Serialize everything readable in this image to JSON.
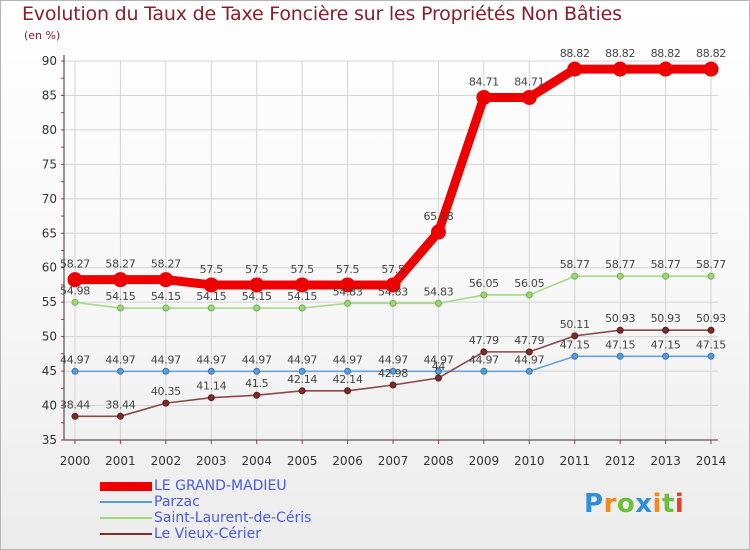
{
  "chart_data": {
    "type": "line",
    "title": "Evolution du Taux de Taxe Foncière sur les Propriétés Non Bâties",
    "ylabel": "(en %)",
    "xlabel": "",
    "ylim": [
      35,
      90
    ],
    "yticks": [
      "35",
      "40",
      "45",
      "50",
      "55",
      "60",
      "65",
      "70",
      "75",
      "80",
      "85",
      "90"
    ],
    "categories": [
      "2000",
      "2001",
      "2002",
      "2003",
      "2004",
      "2005",
      "2006",
      "2007",
      "2008",
      "2009",
      "2010",
      "2011",
      "2012",
      "2013",
      "2014"
    ],
    "grid": true,
    "legend_position": "bottom-left",
    "series": [
      {
        "name": "LE GRAND-MADIEU",
        "color": "#ee0000",
        "values": [
          58.27,
          58.27,
          58.27,
          57.5,
          57.5,
          57.5,
          57.5,
          57.5,
          65.18,
          84.71,
          84.71,
          88.82,
          88.82,
          88.82,
          88.82
        ],
        "labels": [
          "58.27",
          "58.27",
          "58.27",
          "57.5",
          "57.5",
          "57.5",
          "57.5",
          "57.5",
          "65.18",
          "84.71",
          "84.71",
          "88.82",
          "88.82",
          "88.82",
          "88.82"
        ]
      },
      {
        "name": "Parzac",
        "color": "#5b9bd5",
        "values": [
          44.97,
          44.97,
          44.97,
          44.97,
          44.97,
          44.97,
          44.97,
          44.97,
          44.97,
          44.97,
          44.97,
          47.15,
          47.15,
          47.15,
          47.15
        ],
        "labels": [
          "44.97",
          "44.97",
          "44.97",
          "44.97",
          "44.97",
          "44.97",
          "44.97",
          "44.97",
          "44.97",
          "44.97",
          "44.97",
          "47.15",
          "47.15",
          "47.15",
          "47.15"
        ]
      },
      {
        "name": "Saint-Laurent-de-Céris",
        "color": "#9fd67a",
        "values": [
          54.98,
          54.15,
          54.15,
          54.15,
          54.15,
          54.15,
          54.83,
          54.83,
          54.83,
          56.05,
          56.05,
          58.77,
          58.77,
          58.77,
          58.77
        ],
        "labels": [
          "54.98",
          "54.15",
          "54.15",
          "54.15",
          "54.15",
          "54.15",
          "54.83",
          "54.83",
          "54.83",
          "56.05",
          "56.05",
          "58.77",
          "58.77",
          "58.77",
          "58.77"
        ]
      },
      {
        "name": "Le Vieux-Cérier",
        "color": "#7b2c2c",
        "values": [
          38.44,
          38.44,
          40.35,
          41.14,
          41.5,
          42.14,
          42.14,
          42.98,
          44,
          47.79,
          47.79,
          50.11,
          50.93,
          50.93,
          50.93
        ],
        "labels": [
          "38.44",
          "38.44",
          "40.35",
          "41.14",
          "41.5",
          "42.14",
          "42.14",
          "42.98",
          "44",
          "47.79",
          "47.79",
          "50.11",
          "50.93",
          "50.93",
          "50.93"
        ]
      }
    ]
  },
  "brand": {
    "letters": [
      "P",
      "r",
      "o",
      "x",
      "i",
      "t",
      "i"
    ],
    "colors": [
      "#2f8fd6",
      "#f08a1c",
      "#6cbf3a",
      "#2f8fd6",
      "#f08a1c",
      "#6cbf3a",
      "#e4402a"
    ]
  }
}
